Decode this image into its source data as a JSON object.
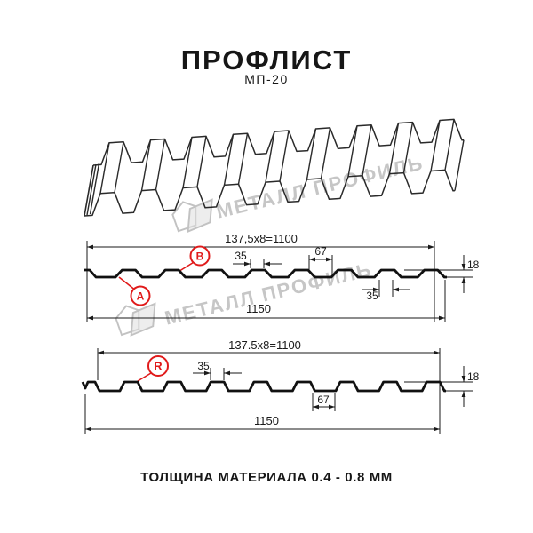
{
  "header": {
    "title": "ПРОФЛИСТ",
    "subtitle": "МП-20"
  },
  "footer": {
    "label": "ТОЛЩИНА МАТЕРИАЛА 0.4 - 0.8 ММ"
  },
  "watermark": {
    "text": "МЕТАЛЛ ПРОФИЛЬ"
  },
  "colors": {
    "accent_red": "#e01a1a",
    "line": "#1a1a1a",
    "watermark_gray": "#c6c6c6"
  },
  "section_top": {
    "dim_total": "137,5x8=1100",
    "dim_rib_top": "35",
    "dim_rib_base": "67",
    "dim_height": "18",
    "dim_valley": "35",
    "dim_width": "1150",
    "label_a": "A",
    "label_b": "B"
  },
  "section_bottom": {
    "dim_total": "137.5x8=1100",
    "dim_rib_top": "35",
    "dim_valley": "67",
    "dim_height": "18",
    "dim_width": "1150",
    "label_r": "R"
  }
}
